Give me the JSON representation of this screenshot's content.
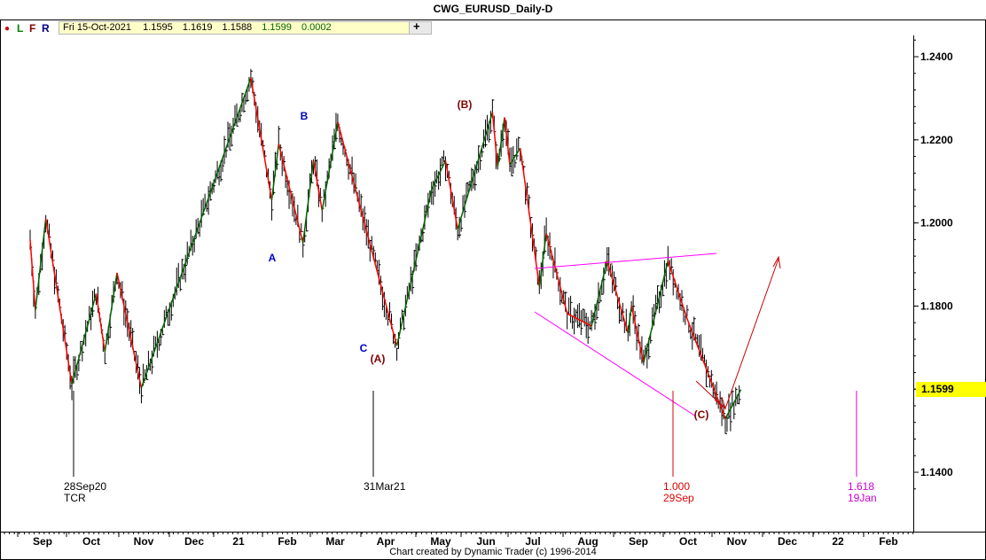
{
  "window": {
    "title": "CWG_EURUSD_Daily-D"
  },
  "toolbar": {
    "dot": "●",
    "l": "L",
    "f": "F",
    "r": "R",
    "plus": "+",
    "dot_color": "#cc0000",
    "l_color": "#008000",
    "f_color": "#800000",
    "r_color": "#000080"
  },
  "readout": {
    "date": "Fri 15-Oct-2021",
    "open": "1.1595",
    "high": "1.1619",
    "low": "1.1588",
    "close": "1.1599",
    "change": "0.0002"
  },
  "current_price": {
    "value": "1.1599"
  },
  "footer": {
    "credit": "Chart created by Dynamic Trader  (c) 1996-2014"
  },
  "chart_data": {
    "type": "line",
    "title": "CWG_EURUSD_Daily-D",
    "y_axis": {
      "ticks": [
        "1.2400",
        "1.2200",
        "1.2000",
        "1.1800",
        "1.1600",
        "1.1400"
      ],
      "ylim": [
        1.127,
        1.2505
      ]
    },
    "x_axis": {
      "ticks": [
        "Sep",
        "Oct",
        "Nov",
        "Dec",
        "21",
        "Feb",
        "Mar",
        "Apr",
        "May",
        "Jun",
        "Jul",
        "Aug",
        "Sep",
        "Oct",
        "Nov",
        "Dec",
        "22",
        "Feb"
      ]
    },
    "swing_series": [
      {
        "date": "2020-09-01",
        "price": 1.196
      },
      {
        "date": "2020-09-04",
        "price": 1.179
      },
      {
        "date": "2020-09-10",
        "price": 1.2011
      },
      {
        "date": "2020-09-25",
        "price": 1.1612
      },
      {
        "date": "2020-10-09",
        "price": 1.183
      },
      {
        "date": "2020-10-14",
        "price": 1.169
      },
      {
        "date": "2020-10-21",
        "price": 1.188
      },
      {
        "date": "2020-11-04",
        "price": 1.1603
      },
      {
        "date": "2021-01-06",
        "price": 1.2349
      },
      {
        "date": "2021-01-18",
        "price": 1.2055
      },
      {
        "date": "2021-01-22",
        "price": 1.219
      },
      {
        "date": "2021-02-05",
        "price": 1.1952
      },
      {
        "date": "2021-02-11",
        "price": 1.215
      },
      {
        "date": "2021-02-16",
        "price": 1.203
      },
      {
        "date": "2021-02-22",
        "price": 1.217
      },
      {
        "date": "2021-02-25",
        "price": 1.2243
      },
      {
        "date": "2021-03-31",
        "price": 1.1704
      },
      {
        "date": "2021-04-20",
        "price": 1.208
      },
      {
        "date": "2021-04-28",
        "price": 1.215
      },
      {
        "date": "2021-05-05",
        "price": 1.1985
      },
      {
        "date": "2021-05-25",
        "price": 1.2266
      },
      {
        "date": "2021-05-28",
        "price": 1.2135
      },
      {
        "date": "2021-06-01",
        "price": 1.2254
      },
      {
        "date": "2021-06-04",
        "price": 1.214
      },
      {
        "date": "2021-06-10",
        "price": 1.218
      },
      {
        "date": "2021-06-21",
        "price": 1.1847
      },
      {
        "date": "2021-06-25",
        "price": 1.1975
      },
      {
        "date": "2021-07-07",
        "price": 1.1782
      },
      {
        "date": "2021-07-21",
        "price": 1.1752
      },
      {
        "date": "2021-07-30",
        "price": 1.1909
      },
      {
        "date": "2021-08-11",
        "price": 1.1735
      },
      {
        "date": "2021-08-13",
        "price": 1.18
      },
      {
        "date": "2021-08-20",
        "price": 1.1664
      },
      {
        "date": "2021-09-03",
        "price": 1.1909
      },
      {
        "date": "2021-09-14",
        "price": 1.177
      },
      {
        "date": "2021-10-06",
        "price": 1.1529
      },
      {
        "date": "2021-10-15",
        "price": 1.1599
      }
    ],
    "labels": {
      "A": "A",
      "B": "B",
      "C": "C",
      "big_A": "(A)",
      "big_B": "(B)",
      "big_C": "(C)",
      "date1": "28Sep20",
      "tcr": "TCR",
      "date2": "31Mar21",
      "ratio1": "1.000",
      "date3": "29Sep",
      "ratio2": "1.618",
      "date4": "19Jan"
    },
    "colors": {
      "up": "#006400",
      "down": "#ff0000",
      "triangle": "#ff00ff",
      "projection": "#cc0000",
      "label_blue": "#0000cc",
      "label_brown": "#800000",
      "ratio_red": "#dd0000",
      "ratio_magenta": "#cc00cc"
    }
  }
}
